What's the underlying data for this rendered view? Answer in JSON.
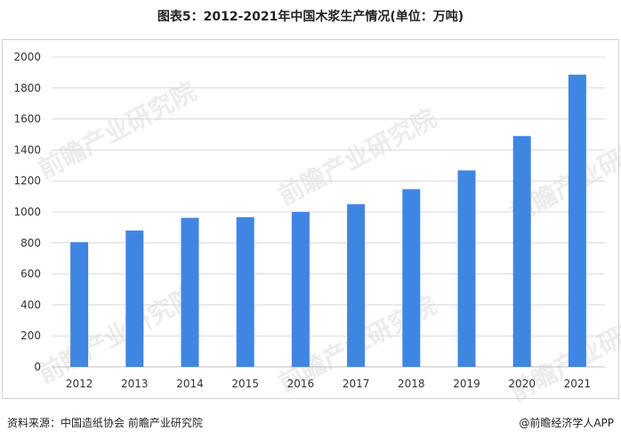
{
  "title": "图表5：2012-2021年中国木浆生产情况(单位：万吨)",
  "footer": {
    "source": "资料来源：中国造纸协会 前瞻产业研究院",
    "credit": "@前瞻经济学人APP"
  },
  "watermark": "前瞻产业研究院",
  "colors": {
    "bar": "#3f86e3",
    "grid": "#d9d9d9",
    "axis": "#bfbfbf"
  },
  "chart_data": {
    "type": "bar",
    "title": "图表5：2012-2021年中国木浆生产情况(单位：万吨)",
    "categories": [
      "2012",
      "2013",
      "2014",
      "2015",
      "2016",
      "2017",
      "2018",
      "2019",
      "2020",
      "2021"
    ],
    "values": [
      805,
      880,
      962,
      966,
      1000,
      1050,
      1147,
      1268,
      1490,
      1886
    ],
    "xlabel": "",
    "ylabel": "",
    "ylim": [
      0,
      2000
    ],
    "yticks": [
      0,
      200,
      400,
      600,
      800,
      1000,
      1200,
      1400,
      1600,
      1800,
      2000
    ],
    "grid": true,
    "legend": "none"
  }
}
